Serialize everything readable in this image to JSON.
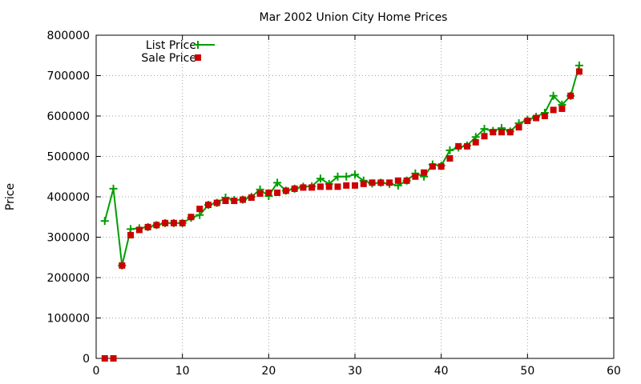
{
  "chart_data": {
    "type": "line",
    "title": "Mar 2002 Union City Home Prices",
    "xlabel": "",
    "ylabel": "Price",
    "xlim": [
      0,
      60
    ],
    "ylim": [
      0,
      800000
    ],
    "x_ticks": [
      "0",
      "10",
      "20",
      "30",
      "40",
      "50",
      "60"
    ],
    "y_ticks": [
      "0",
      "100000",
      "200000",
      "300000",
      "400000",
      "500000",
      "600000",
      "700000",
      "800000"
    ],
    "grid": true,
    "legend_position": "top-left",
    "series": [
      {
        "name": "List Price",
        "style": "lines+points",
        "marker": "plus",
        "color": "#009e00",
        "points": [
          [
            1,
            340000
          ],
          [
            2,
            420000
          ],
          [
            3,
            230000
          ],
          [
            4,
            320000
          ],
          [
            5,
            322000
          ],
          [
            6,
            325000
          ],
          [
            7,
            330000
          ],
          [
            8,
            335000
          ],
          [
            9,
            335000
          ],
          [
            10,
            335000
          ],
          [
            11,
            348000
          ],
          [
            12,
            355000
          ],
          [
            13,
            380000
          ],
          [
            14,
            385000
          ],
          [
            15,
            398000
          ],
          [
            16,
            392000
          ],
          [
            17,
            393000
          ],
          [
            18,
            400000
          ],
          [
            19,
            418000
          ],
          [
            20,
            402000
          ],
          [
            21,
            435000
          ],
          [
            22,
            415000
          ],
          [
            23,
            420000
          ],
          [
            24,
            425000
          ],
          [
            25,
            426000
          ],
          [
            26,
            445000
          ],
          [
            27,
            432000
          ],
          [
            28,
            450000
          ],
          [
            29,
            450000
          ],
          [
            30,
            455000
          ],
          [
            31,
            440000
          ],
          [
            32,
            433000
          ],
          [
            33,
            435000
          ],
          [
            34,
            432000
          ],
          [
            35,
            428000
          ],
          [
            36,
            440000
          ],
          [
            37,
            458000
          ],
          [
            38,
            450000
          ],
          [
            39,
            480000
          ],
          [
            40,
            477000
          ],
          [
            41,
            515000
          ],
          [
            42,
            522000
          ],
          [
            43,
            527000
          ],
          [
            44,
            548000
          ],
          [
            45,
            568000
          ],
          [
            46,
            563000
          ],
          [
            47,
            570000
          ],
          [
            48,
            562000
          ],
          [
            49,
            582000
          ],
          [
            50,
            590000
          ],
          [
            51,
            598000
          ],
          [
            52,
            608000
          ],
          [
            53,
            650000
          ],
          [
            54,
            628000
          ],
          [
            55,
            650000
          ],
          [
            56,
            725000
          ]
        ]
      },
      {
        "name": "Sale Price",
        "style": "points",
        "marker": "filled-square",
        "color": "#cc0000",
        "points": [
          [
            1,
            0
          ],
          [
            2,
            0
          ],
          [
            3,
            230000
          ],
          [
            4,
            305000
          ],
          [
            5,
            318000
          ],
          [
            6,
            325000
          ],
          [
            7,
            330000
          ],
          [
            8,
            335000
          ],
          [
            9,
            335000
          ],
          [
            10,
            335000
          ],
          [
            11,
            350000
          ],
          [
            12,
            370000
          ],
          [
            13,
            380000
          ],
          [
            14,
            385000
          ],
          [
            15,
            390000
          ],
          [
            16,
            390000
          ],
          [
            17,
            393000
          ],
          [
            18,
            398000
          ],
          [
            19,
            408000
          ],
          [
            20,
            410000
          ],
          [
            21,
            410000
          ],
          [
            22,
            415000
          ],
          [
            23,
            420000
          ],
          [
            24,
            423000
          ],
          [
            25,
            423000
          ],
          [
            26,
            425000
          ],
          [
            27,
            425000
          ],
          [
            28,
            425000
          ],
          [
            29,
            428000
          ],
          [
            30,
            428000
          ],
          [
            31,
            432000
          ],
          [
            32,
            435000
          ],
          [
            33,
            435000
          ],
          [
            34,
            435000
          ],
          [
            35,
            440000
          ],
          [
            36,
            440000
          ],
          [
            37,
            450000
          ],
          [
            38,
            460000
          ],
          [
            39,
            475000
          ],
          [
            40,
            475000
          ],
          [
            41,
            495000
          ],
          [
            42,
            525000
          ],
          [
            43,
            525000
          ],
          [
            44,
            535000
          ],
          [
            45,
            550000
          ],
          [
            46,
            560000
          ],
          [
            47,
            560000
          ],
          [
            48,
            560000
          ],
          [
            49,
            572000
          ],
          [
            50,
            588000
          ],
          [
            51,
            595000
          ],
          [
            52,
            600000
          ],
          [
            53,
            615000
          ],
          [
            54,
            618000
          ],
          [
            55,
            650000
          ],
          [
            56,
            710000
          ]
        ]
      }
    ]
  }
}
